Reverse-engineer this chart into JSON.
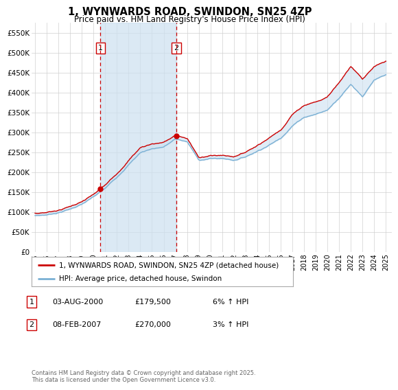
{
  "title": "1, WYNWARDS ROAD, SWINDON, SN25 4ZP",
  "subtitle": "Price paid vs. HM Land Registry's House Price Index (HPI)",
  "ylabel_ticks": [
    "£0",
    "£50K",
    "£100K",
    "£150K",
    "£200K",
    "£250K",
    "£300K",
    "£350K",
    "£400K",
    "£450K",
    "£500K",
    "£550K"
  ],
  "ytick_values": [
    0,
    50000,
    100000,
    150000,
    200000,
    250000,
    300000,
    350000,
    400000,
    450000,
    500000,
    550000
  ],
  "ylim": [
    0,
    575000
  ],
  "xlim_start": 1994.7,
  "xlim_end": 2025.5,
  "xtick_years": [
    1995,
    1996,
    1997,
    1998,
    1999,
    2000,
    2001,
    2002,
    2003,
    2004,
    2005,
    2006,
    2007,
    2008,
    2009,
    2010,
    2011,
    2012,
    2013,
    2014,
    2015,
    2016,
    2017,
    2018,
    2019,
    2020,
    2021,
    2022,
    2023,
    2024,
    2025
  ],
  "purchase1_x": 2000.58,
  "purchase1_y": 179500,
  "purchase2_x": 2007.08,
  "purchase2_y": 270000,
  "line_red_color": "#cc0000",
  "line_blue_color": "#7ab0d4",
  "fill_color": "#cce0f0",
  "grid_color": "#d0d0d0",
  "background_color": "#ffffff",
  "legend_red_label": "1, WYNWARDS ROAD, SWINDON, SN25 4ZP (detached house)",
  "legend_blue_label": "HPI: Average price, detached house, Swindon",
  "transaction_rows": [
    {
      "num": "1",
      "date": "03-AUG-2000",
      "price": "£179,500",
      "hpi": "6% ↑ HPI"
    },
    {
      "num": "2",
      "date": "08-FEB-2007",
      "price": "£270,000",
      "hpi": "3% ↑ HPI"
    }
  ],
  "footer": "Contains HM Land Registry data © Crown copyright and database right 2025.\nThis data is licensed under the Open Government Licence v3.0.",
  "hpi_ctrl_x": [
    1995,
    1996,
    1997,
    1998,
    1999,
    2000,
    2001,
    2002,
    2003,
    2004,
    2005,
    2006,
    2007,
    2008,
    2009,
    2010,
    2011,
    2012,
    2013,
    2014,
    2015,
    2016,
    2017,
    2018,
    2019,
    2020,
    2021,
    2022,
    2023,
    2024,
    2025
  ],
  "hpi_ctrl_y": [
    91000,
    93000,
    99000,
    108000,
    120000,
    137000,
    157000,
    185000,
    218000,
    248000,
    258000,
    263000,
    282000,
    275000,
    228000,
    232000,
    232000,
    228000,
    237000,
    252000,
    268000,
    285000,
    318000,
    340000,
    348000,
    358000,
    390000,
    425000,
    395000,
    435000,
    445000
  ],
  "red_ctrl_x": [
    1995,
    1996,
    1997,
    1998,
    1999,
    2000,
    2001,
    2002,
    2003,
    2004,
    2005,
    2006,
    2007,
    2008,
    2009,
    2010,
    2011,
    2012,
    2013,
    2014,
    2015,
    2016,
    2017,
    2018,
    2019,
    2020,
    2021,
    2022,
    2023,
    2024,
    2025
  ],
  "red_ctrl_y": [
    97000,
    99000,
    105000,
    114000,
    127000,
    145000,
    166000,
    196000,
    231000,
    263000,
    273000,
    278000,
    295000,
    286000,
    238000,
    243000,
    243000,
    240000,
    250000,
    267000,
    285000,
    305000,
    345000,
    370000,
    380000,
    392000,
    430000,
    470000,
    440000,
    470000,
    480000
  ]
}
